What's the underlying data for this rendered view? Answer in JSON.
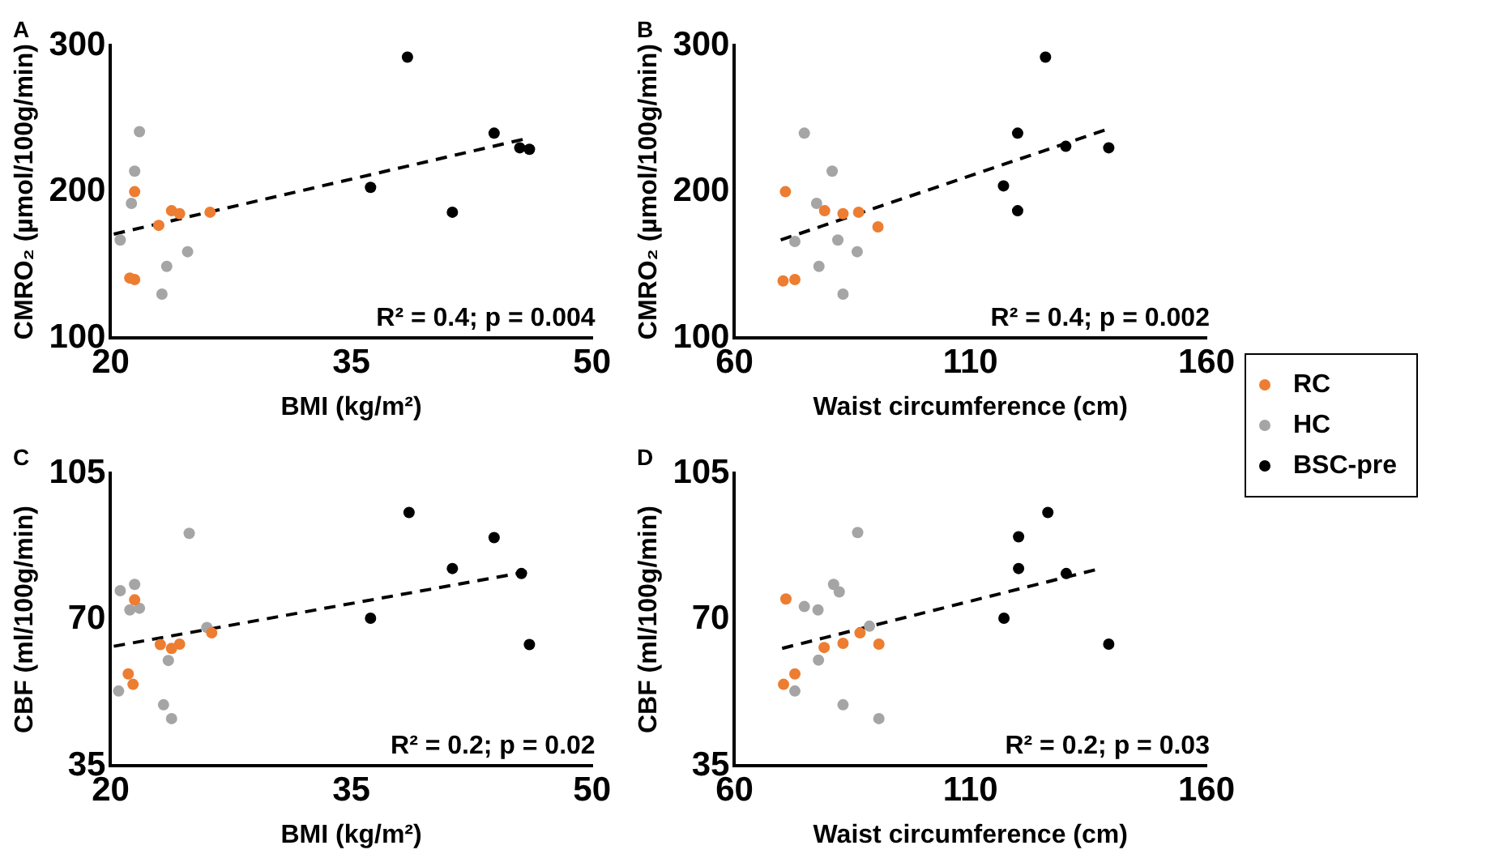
{
  "chart_data": [
    {
      "type": "scatter",
      "xlabel": "BMI (kg/m²)",
      "ylabel": "CMRO₂ (µmol/100g/min)",
      "xlim": [
        20,
        50
      ],
      "xticks": [
        20,
        35,
        50
      ],
      "ylim": [
        100,
        300
      ],
      "yticks": [
        100,
        200,
        300
      ],
      "grid": false,
      "marker": "circle",
      "legend": "right",
      "annotations": [
        "A",
        "R² = 0.4; p = 0.004"
      ],
      "series": [
        {
          "name": "RC",
          "color": "#ed7d31",
          "x": [
            21.5,
            23.8,
            24.3,
            23.0,
            26.2,
            21.2,
            21.5
          ],
          "values": [
            200,
            187,
            185,
            177,
            186,
            141,
            140
          ]
        },
        {
          "name": "HC",
          "color": "#a5a5a5",
          "x": [
            21.8,
            21.5,
            21.3,
            20.6,
            24.8,
            23.5,
            23.2
          ],
          "values": [
            241,
            214,
            192,
            167,
            159,
            149,
            130
          ]
        },
        {
          "name": "BSC-pre",
          "color": "#000000",
          "x": [
            38.5,
            43.9,
            45.5,
            46.1,
            36.2,
            41.3
          ],
          "values": [
            292,
            240,
            230,
            229,
            203,
            186
          ]
        },
        {
          "type": "line",
          "color": "#000000",
          "line_style": "dashed",
          "marker": "none",
          "x": [
            20.2,
            45.8
          ],
          "values": [
            171,
            236
          ]
        }
      ]
    },
    {
      "type": "scatter",
      "xlabel": "Waist circumference (cm)",
      "ylabel": "CMRO₂ (µmol/100g/min)",
      "xlim": [
        60,
        160
      ],
      "xticks": [
        60,
        110,
        160
      ],
      "ylim": [
        100,
        300
      ],
      "yticks": [
        100,
        200,
        300
      ],
      "grid": false,
      "marker": "circle",
      "annotations": [
        "B",
        "R² = 0.4; p = 0.002"
      ],
      "series": [
        {
          "color": "#ed7d31",
          "x": [
            70.8,
            79.1,
            83.0,
            86.3,
            90.4,
            70.3,
            72.8
          ],
          "values": [
            200,
            187,
            185,
            186,
            176,
            139,
            140
          ]
        },
        {
          "color": "#a5a5a5",
          "x": [
            74.8,
            80.7,
            77.4,
            72.8,
            81.9,
            86.0,
            77.9,
            83.0
          ],
          "values": [
            240,
            214,
            192,
            166,
            167,
            159,
            149,
            130
          ]
        },
        {
          "color": "#000000",
          "x": [
            125.9,
            120.0,
            130.2,
            139.3,
            117.0,
            120.0
          ],
          "values": [
            292,
            240,
            231,
            230,
            204,
            187
          ]
        },
        {
          "type": "line",
          "color": "#000000",
          "line_style": "dashed",
          "marker": "none",
          "x": [
            69.8,
            139.3
          ],
          "values": [
            167,
            243
          ]
        }
      ]
    },
    {
      "type": "scatter",
      "xlabel": "BMI (kg/m²)",
      "ylabel": "CBF (ml/100g/min)",
      "xlim": [
        20,
        50
      ],
      "xticks": [
        20,
        35,
        50
      ],
      "ylim": [
        35,
        105
      ],
      "yticks": [
        35,
        70,
        105
      ],
      "grid": false,
      "marker": "circle",
      "annotations": [
        "C",
        "R² = 0.2; p = 0.02"
      ],
      "series": [
        {
          "color": "#ed7d31",
          "x": [
            21.5,
            23.1,
            23.8,
            24.3,
            26.3,
            21.1,
            21.4
          ],
          "values": [
            74.7,
            64.0,
            63.1,
            64.1,
            66.8,
            57.0,
            54.5
          ]
        },
        {
          "color": "#a5a5a5",
          "x": [
            24.9,
            20.6,
            21.5,
            21.2,
            21.8,
            26.0,
            23.6,
            20.5,
            23.3,
            23.8
          ],
          "values": [
            90.6,
            76.9,
            78.4,
            72.3,
            72.7,
            68.1,
            60.2,
            52.9,
            49.6,
            46.3
          ]
        },
        {
          "color": "#000000",
          "x": [
            38.6,
            43.9,
            41.3,
            45.6,
            36.2,
            46.1
          ],
          "values": [
            95.6,
            89.6,
            82.2,
            81.0,
            70.3,
            64.0
          ]
        },
        {
          "type": "line",
          "color": "#000000",
          "line_style": "dashed",
          "marker": "none",
          "x": [
            20.2,
            46.1
          ],
          "values": [
            63.6,
            81.5
          ]
        }
      ]
    },
    {
      "type": "scatter",
      "xlabel": "Waist circumference (cm)",
      "ylabel": "CBF (ml/100g/min)",
      "xlim": [
        60,
        160
      ],
      "xticks": [
        60,
        110,
        160
      ],
      "ylim": [
        35,
        105
      ],
      "yticks": [
        35,
        70,
        105
      ],
      "grid": false,
      "marker": "circle",
      "annotations": [
        "D",
        "R² = 0.2; p = 0.03"
      ],
      "series": [
        {
          "color": "#ed7d31",
          "x": [
            70.9,
            79.0,
            83.0,
            86.6,
            90.6,
            72.8,
            70.4
          ],
          "values": [
            74.9,
            63.3,
            64.3,
            66.8,
            64.1,
            57.0,
            54.5
          ]
        },
        {
          "color": "#a5a5a5",
          "x": [
            86.1,
            81.0,
            82.2,
            74.8,
            77.7,
            88.6,
            77.8,
            72.8,
            83.0,
            90.6
          ],
          "values": [
            90.8,
            78.4,
            76.6,
            73.1,
            72.3,
            68.4,
            60.3,
            52.9,
            49.6,
            46.3
          ]
        },
        {
          "color": "#000000",
          "x": [
            126.4,
            120.2,
            120.2,
            130.3,
            117.1,
            139.3
          ],
          "values": [
            95.6,
            89.8,
            82.2,
            81.0,
            70.3,
            64.1
          ]
        },
        {
          "type": "line",
          "color": "#000000",
          "line_style": "dashed",
          "marker": "none",
          "x": [
            70.1,
            136.5
          ],
          "values": [
            63.1,
            81.9
          ]
        }
      ]
    }
  ]
}
